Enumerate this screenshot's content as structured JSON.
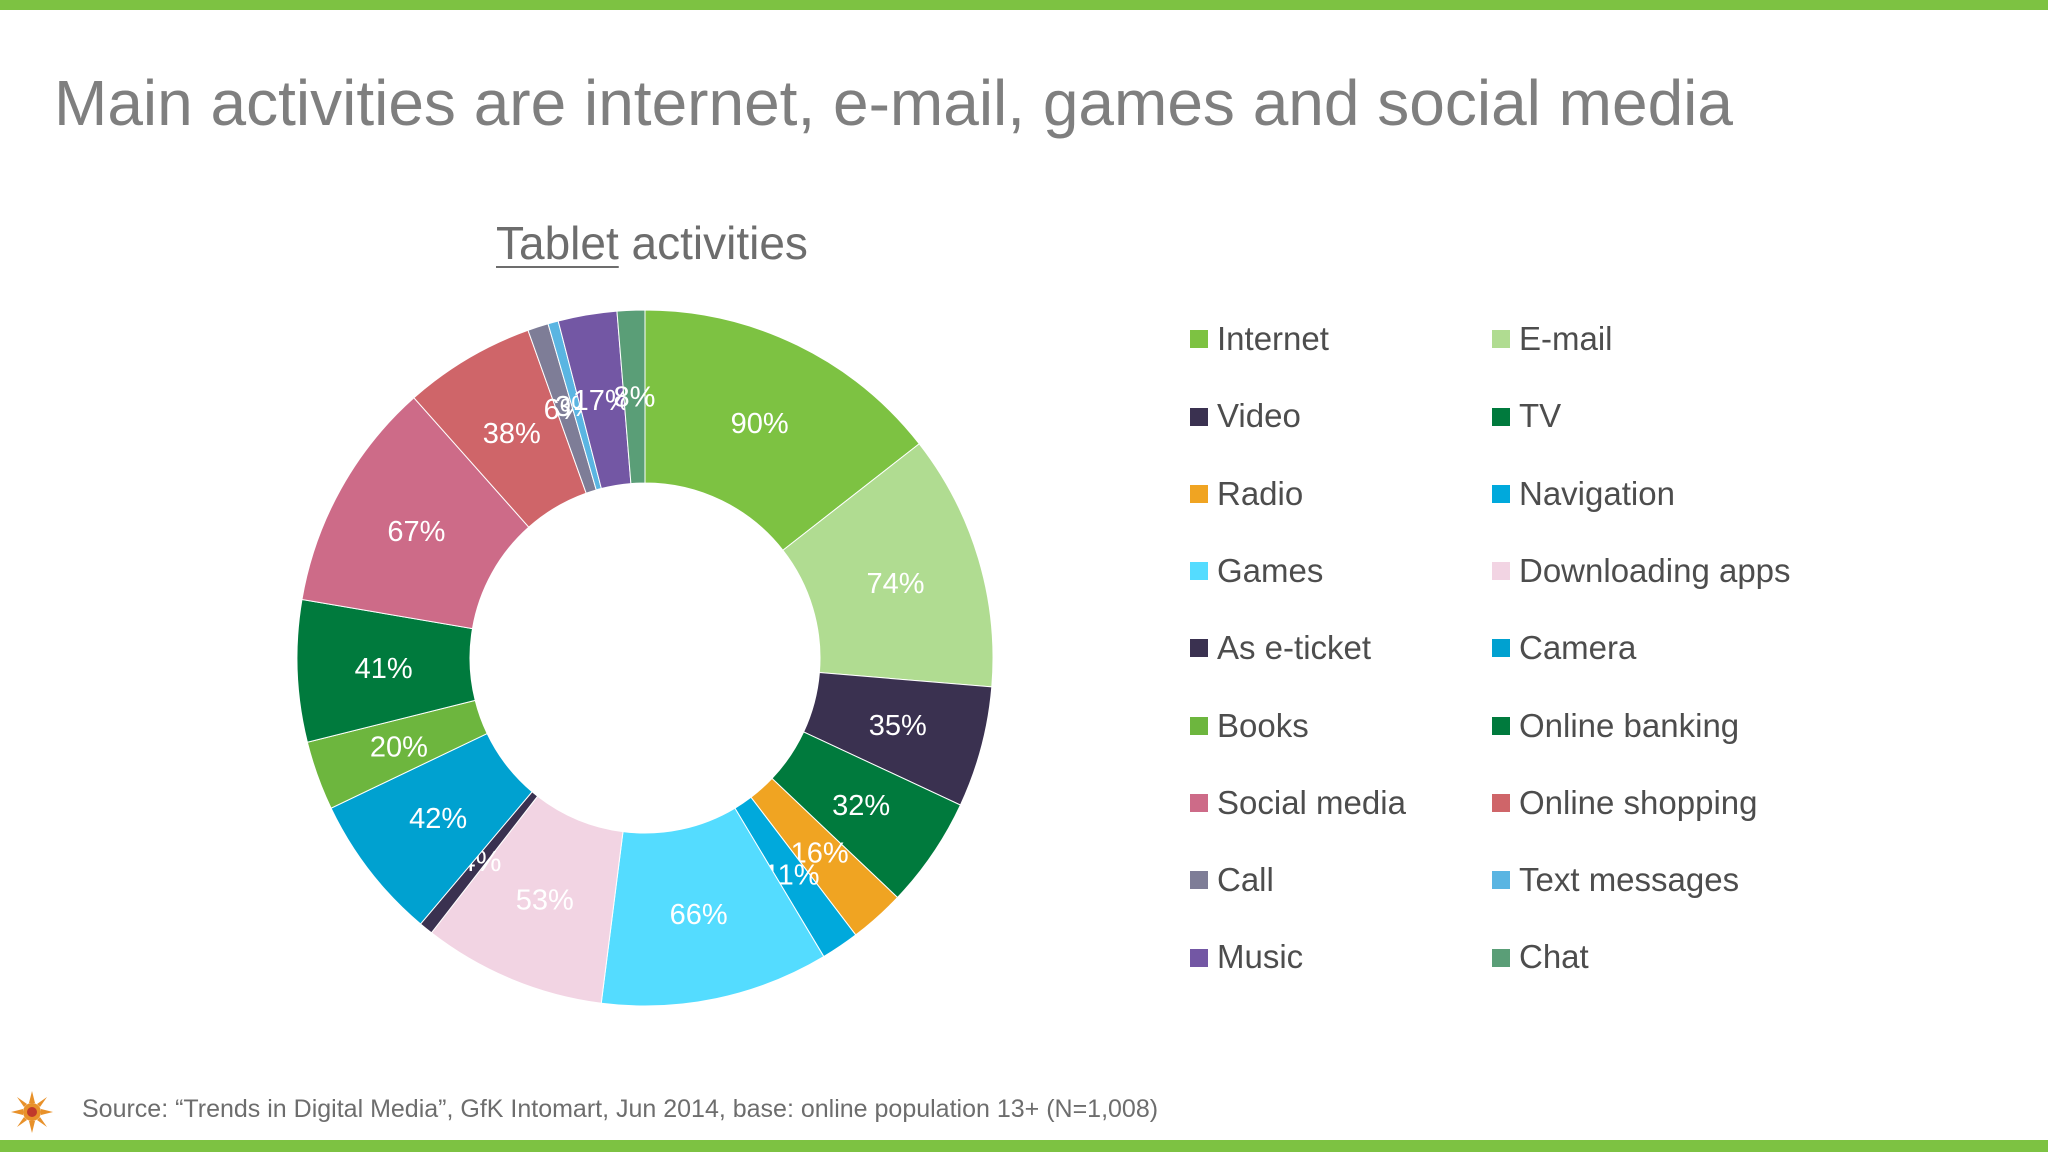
{
  "slide": {
    "title": "Main activities are internet, e-mail, games and social media",
    "source": "Source: “Trends in Digital Media”, GfK Intomart, Jun 2014, base: online population 13+ (N=1,008)"
  },
  "colors": {
    "accent_bar": "#7dc242",
    "title_text": "#7f7f7f"
  },
  "logo": {
    "icon": "sun-logo-icon"
  },
  "chart_data": {
    "type": "pie",
    "donut": true,
    "title_underlined": "Tablet",
    "title_rest": " activities",
    "title": "Tablet activities",
    "legend_position": "right",
    "slices": [
      {
        "label": "Internet",
        "value": 90,
        "value_label": "90%",
        "color": "#7dc242"
      },
      {
        "label": "E-mail",
        "value": 74,
        "value_label": "74%",
        "color": "#b0dc91"
      },
      {
        "label": "Video",
        "value": 35,
        "value_label": "35%",
        "color": "#3a3150"
      },
      {
        "label": "TV",
        "value": 32,
        "value_label": "32%",
        "color": "#007a3d"
      },
      {
        "label": "Radio",
        "value": 16,
        "value_label": "16%",
        "color": "#f0a422"
      },
      {
        "label": "Navigation",
        "value": 11,
        "value_label": "11%",
        "color": "#00a9dc"
      },
      {
        "label": "Games",
        "value": 66,
        "value_label": "66%",
        "color": "#54dcff"
      },
      {
        "label": "Downloading apps",
        "value": 53,
        "value_label": "53%",
        "color": "#f2d4e3"
      },
      {
        "label": "As e-ticket",
        "value": 4,
        "value_label": "4%",
        "color": "#3a3150"
      },
      {
        "label": "Camera",
        "value": 42,
        "value_label": "42%",
        "color": "#00a1d0"
      },
      {
        "label": "Books",
        "value": 20,
        "value_label": "20%",
        "color": "#6db63e"
      },
      {
        "label": "Online banking",
        "value": 41,
        "value_label": "41%",
        "color": "#007a3d"
      },
      {
        "label": "Social media",
        "value": 67,
        "value_label": "67%",
        "color": "#cd6b88"
      },
      {
        "label": "Online shopping",
        "value": 38,
        "value_label": "38%",
        "color": "#cf6569"
      },
      {
        "label": "Call",
        "value": 6,
        "value_label": "6%",
        "color": "#7e7d97"
      },
      {
        "label": "Text messages",
        "value": 3,
        "value_label": "3%",
        "color": "#5ab5e2"
      },
      {
        "label": "Music",
        "value": 17,
        "value_label": "17%",
        "color": "#7357a4"
      },
      {
        "label": "Chat",
        "value": 8,
        "value_label": "8%",
        "color": "#5a9e77"
      }
    ]
  }
}
